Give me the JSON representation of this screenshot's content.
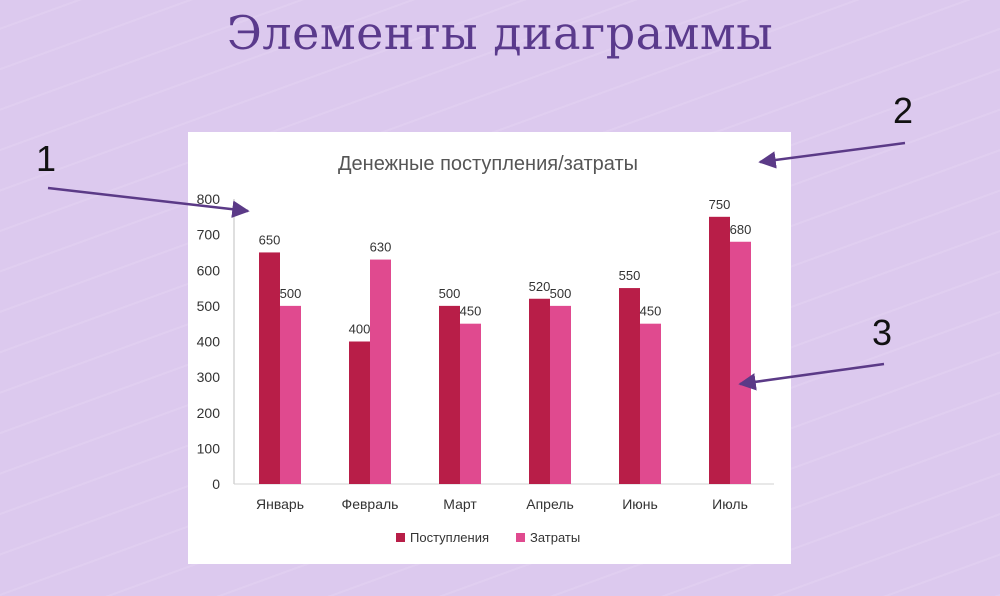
{
  "slide": {
    "title": "Элементы диаграммы",
    "callouts": [
      "1",
      "2",
      "3"
    ]
  },
  "colors": {
    "background": "#dcc9ee",
    "title": "#5a3a8c",
    "arrow": "#5b3a87",
    "series_1": "#b81e48",
    "series_2": "#e04a8f"
  },
  "chart_data": {
    "type": "bar",
    "title": "Денежные поступления/затраты",
    "categories": [
      "Январь",
      "Февраль",
      "Март",
      "Апрель",
      "Июнь",
      "Июль"
    ],
    "series": [
      {
        "name": "Поступления",
        "values": [
          650,
          400,
          500,
          520,
          550,
          750
        ]
      },
      {
        "name": "Затраты",
        "values": [
          500,
          630,
          450,
          500,
          450,
          680
        ]
      }
    ],
    "xlabel": "",
    "ylabel": "",
    "ylim": [
      0,
      800
    ],
    "yticks": [
      0,
      100,
      200,
      300,
      400,
      500,
      600,
      700,
      800
    ],
    "grid": false,
    "legend": "bottom",
    "data_labels": true
  }
}
